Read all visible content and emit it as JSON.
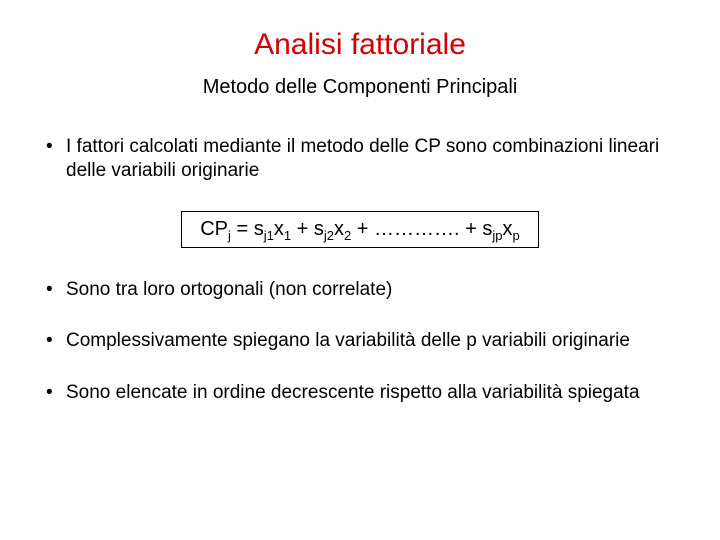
{
  "title": "Analisi fattoriale",
  "subtitle": "Metodo delle Componenti Principali",
  "title_color": "#d40000",
  "text_color": "#000000",
  "background_color": "#ffffff",
  "title_fontsize": 30,
  "subtitle_fontsize": 20,
  "body_fontsize": 19,
  "bullets": [
    "I fattori calcolati mediante il metodo delle CP sono combinazioni lineari delle variabili originarie",
    "Sono tra loro ortogonali (non correlate)",
    "Complessivamente spiegano la variabilità delle p variabili originarie",
    "Sono elencate in ordine decrescente rispetto alla variabilità spiegata"
  ],
  "formula": {
    "lhs_base": "CP",
    "lhs_sub": "j",
    "eq": "  =  ",
    "terms": [
      {
        "coef_base": "s",
        "coef_sub": "j1",
        "var_base": "x",
        "var_sub": "1"
      },
      {
        "coef_base": "s",
        "coef_sub": "j2",
        "var_base": "x",
        "var_sub": "2"
      }
    ],
    "dots": " + …………. + ",
    "last": {
      "coef_base": "s",
      "coef_sub": "jp",
      "var_base": "x",
      "var_sub": "p"
    },
    "border_color": "#000000",
    "fontsize": 20
  }
}
